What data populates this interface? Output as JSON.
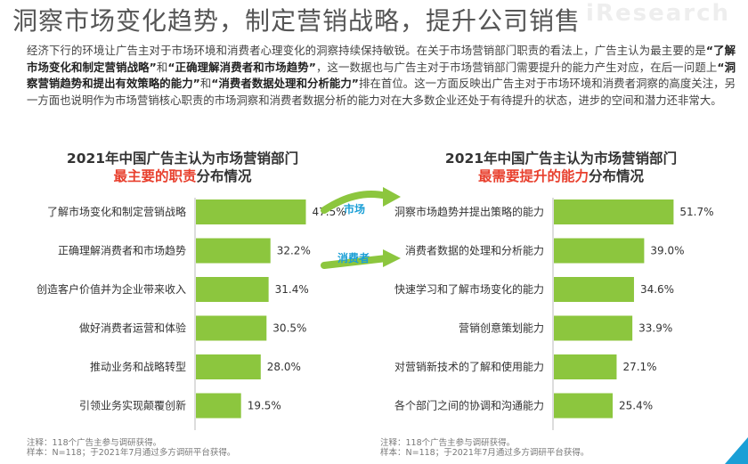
{
  "headline": "洞察市场变化趋势，制定营销战略，提升公司销售",
  "watermark": "iResearch",
  "intro": {
    "p1": "经济下行的环境让广告主对于市场环境和消费者心理变化的洞察持续保持敏锐。在关于市场营销部门职责的看法上，广告主认为最主要的是",
    "q1": "“了解市场变化和制定营销战略”",
    "p2": "和",
    "q2": "“正确理解消费者和市场趋势”",
    "p3": "，这一数据也与广告主对于市场营销部门需要提升的能力产生对应，在后一问题上",
    "q3": "“洞察营销趋势和提出有效策略的能力”",
    "p4": "和",
    "q4": "“消费者数据处理和分析能力”",
    "p5": "排在首位。这一方面反映出广告主对于市场环境和消费者洞察的高度关注，另一方面也说明作为市场营销核心职责的市场洞察和消费者数据分析的能力对在大多数企业还处于有待提升的状态，进步的空间和潜力还非常大。"
  },
  "arrows": {
    "label1": "市场",
    "label2": "消费者",
    "color": "#8cc63e"
  },
  "colors": {
    "bar": "#8cc63e",
    "highlight": "#e8402e"
  },
  "chart_data": [
    {
      "type": "bar",
      "orientation": "horizontal",
      "title_line1": "2021年中国广告主认为市场营销部门",
      "title_hl": "最主要的职责",
      "title_rest": "分布情况",
      "categories": [
        "了解市场变化和制定营销战略",
        "正确理解消费者和市场趋势",
        "创造客户价值并为企业带来收入",
        "做好消费者运营和体验",
        "推动业务和战略转型",
        "引领业务实现颠覆创新"
      ],
      "values": [
        47.5,
        32.2,
        31.4,
        30.5,
        28.0,
        19.5
      ],
      "value_labels": [
        "47.5%",
        "32.2%",
        "31.4%",
        "30.5%",
        "28.0%",
        "19.5%"
      ],
      "note1": "注释：118个广告主参与调研获得。",
      "note2": "样本：N=118；于2021年7月通过多方调研平台获得。"
    },
    {
      "type": "bar",
      "orientation": "horizontal",
      "title_line1": "2021年中国广告主认为市场营销部门",
      "title_hl": "最需要提升的能力",
      "title_rest": "分布情况",
      "categories": [
        "洞察市场趋势并提出策略的能力",
        "消费者数据的处理和分析能力",
        "快速学习和了解市场变化的能力",
        "营销创意策划能力",
        "对营销新技术的了解和使用能力",
        "各个部门之间的协调和沟通能力"
      ],
      "values": [
        51.7,
        39.0,
        34.6,
        33.9,
        27.1,
        25.4
      ],
      "value_labels": [
        "51.7%",
        "39.0%",
        "34.6%",
        "33.9%",
        "27.1%",
        "25.4%"
      ],
      "note1": "注释：118个广告主参与调研获得。",
      "note2": "样本：N=118；于2021年7月通过多方调研平台获得。"
    }
  ]
}
